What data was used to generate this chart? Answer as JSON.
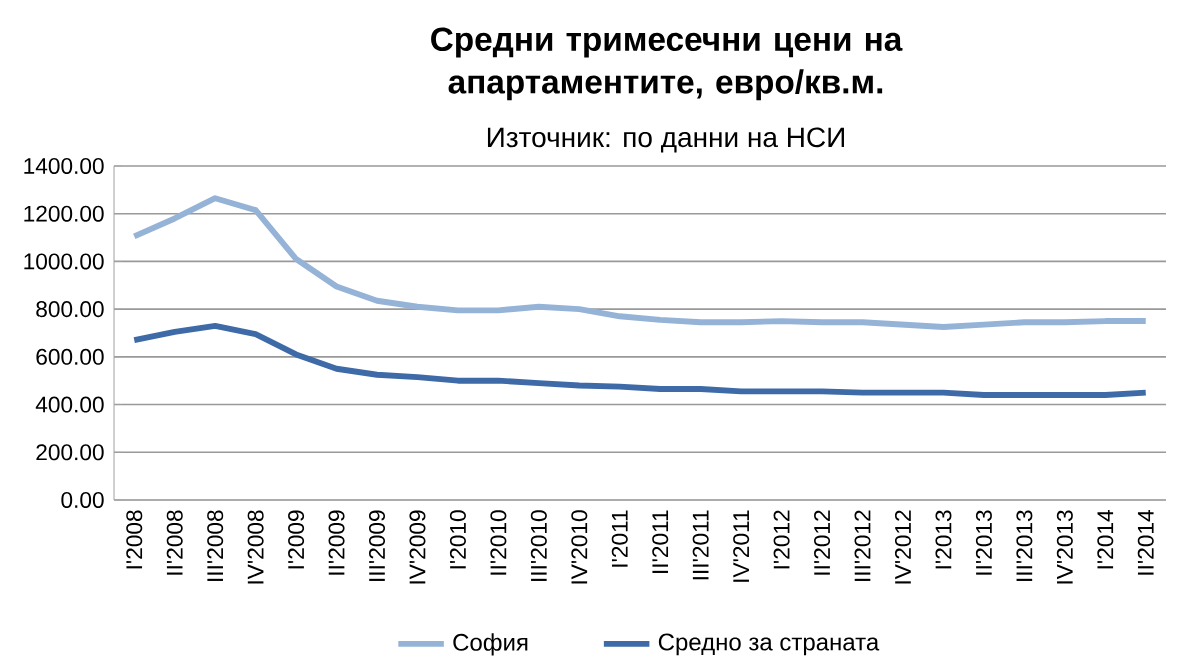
{
  "chart_data": {
    "type": "line",
    "title": "Средни тримесечни цени на апартаментите, евро/кв.м.",
    "subtitle": "Източник: по данни на НСИ",
    "categories": [
      "I'2008",
      "II'2008",
      "III'2008",
      "IV'2008",
      "I'2009",
      "II'2009",
      "III'2009",
      "IV'2009",
      "I'2010",
      "II'2010",
      "III'2010",
      "IV'2010",
      "I'2011",
      "II'2011",
      "III'2011",
      "IV'2011",
      "I'2012",
      "II'2012",
      "III'2012",
      "IV'2012",
      "I'2013",
      "II'2013",
      "III'2013",
      "IV'2013",
      "I'2014",
      "II'2014"
    ],
    "series": [
      {
        "name": "София",
        "color": "#95b3d7",
        "values": [
          1105,
          1180,
          1265,
          1215,
          1010,
          895,
          835,
          810,
          795,
          795,
          810,
          800,
          770,
          755,
          745,
          745,
          750,
          745,
          745,
          735,
          725,
          735,
          745,
          745,
          750,
          750
        ]
      },
      {
        "name": "Средно за страната",
        "color": "#3e6aa8",
        "values": [
          670,
          705,
          730,
          695,
          610,
          550,
          525,
          515,
          500,
          500,
          490,
          480,
          475,
          465,
          465,
          455,
          455,
          455,
          450,
          450,
          450,
          440,
          440,
          440,
          440,
          450
        ]
      }
    ],
    "ylim": [
      0,
      1400
    ],
    "yticks": [
      {
        "value": 0,
        "label": "0.00"
      },
      {
        "value": 200,
        "label": "200.00"
      },
      {
        "value": 400,
        "label": "400.00"
      },
      {
        "value": 600,
        "label": "600.00"
      },
      {
        "value": 800,
        "label": "800.00"
      },
      {
        "value": 1000,
        "label": "1000.00"
      },
      {
        "value": 1200,
        "label": "1200.00"
      },
      {
        "value": 1400,
        "label": "1400.00"
      }
    ],
    "grid": "y",
    "legend": "bottom",
    "marker": "none",
    "line_style": "solid"
  }
}
